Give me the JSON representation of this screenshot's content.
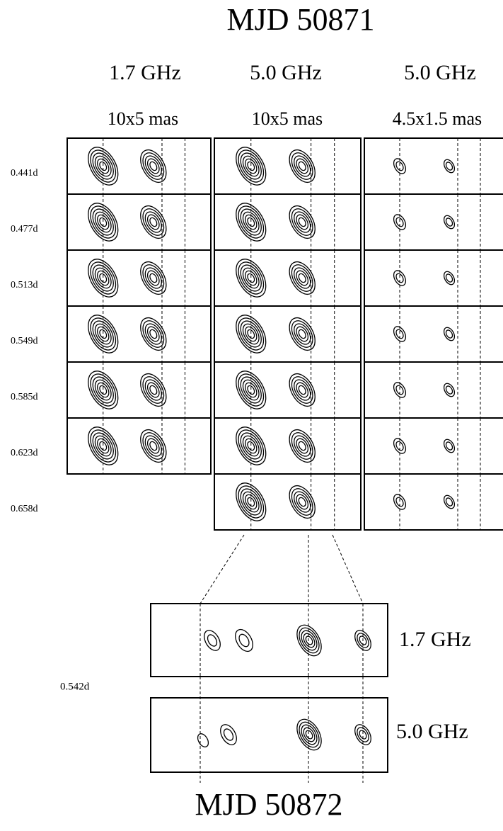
{
  "header": {
    "title": "MJD 50871"
  },
  "columns": [
    {
      "frequency": "1.7 GHz",
      "resolution": "10x5 mas"
    },
    {
      "frequency": "5.0 GHz",
      "resolution": "10x5 mas"
    },
    {
      "frequency": "5.0 GHz",
      "resolution": "4.5x1.5 mas"
    }
  ],
  "rows": [
    "0.441d",
    "0.477d",
    "0.513d",
    "0.549d",
    "0.585d",
    "0.623d",
    "0.658d"
  ],
  "zoom": {
    "epoch": "0.542d",
    "panels": [
      {
        "frequency": "1.7 GHz"
      },
      {
        "frequency": "5.0 GHz"
      }
    ],
    "footer": "MJD 50872"
  }
}
